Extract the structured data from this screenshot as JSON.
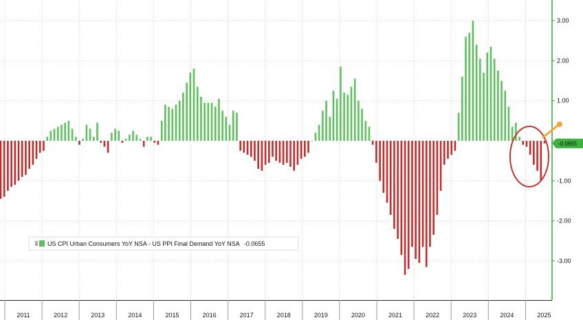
{
  "chart_data": {
    "type": "bar",
    "title": "",
    "xlabel": "",
    "ylabel": "",
    "ylim": [
      -4.0,
      3.3
    ],
    "y_ticks": [
      -3,
      -2,
      -1,
      0,
      1,
      2,
      3
    ],
    "y_tick_labels": [
      "-3.00",
      "-2.00",
      "-1.00",
      "",
      "1.00",
      "2.00",
      "3.00"
    ],
    "x_years": [
      "2011",
      "2012",
      "2013",
      "2014",
      "2015",
      "2016",
      "2017",
      "2018",
      "2019",
      "2020",
      "2021",
      "2022",
      "2023",
      "2024",
      "2025"
    ],
    "series": [
      {
        "name": "US CPI Urban Consumers YoY NSA - US PPI Final Demand YoY NSA",
        "last_value": "-0.0655",
        "last_value_label": "-0.0655",
        "start": "2010-12",
        "values": [
          -1.45,
          -1.4,
          -1.25,
          -1.15,
          -1.1,
          -1.0,
          -0.9,
          -0.85,
          -0.7,
          -0.6,
          -0.45,
          -0.3,
          -0.25,
          0.1,
          0.25,
          0.3,
          0.35,
          0.4,
          0.45,
          0.5,
          0.3,
          0.1,
          -0.1,
          0.05,
          0.4,
          0.3,
          0.1,
          0.45,
          -0.05,
          -0.15,
          -0.3,
          0.2,
          0.3,
          0.25,
          -0.05,
          0.05,
          0.15,
          0.25,
          0.15,
          0.05,
          -0.15,
          0.1,
          0.1,
          -0.05,
          -0.1,
          0.5,
          0.9,
          0.85,
          0.8,
          0.9,
          1.0,
          1.2,
          1.45,
          1.7,
          1.8,
          1.35,
          1.1,
          0.95,
          0.95,
          0.95,
          0.85,
          1.05,
          0.75,
          0.6,
          0.4,
          0.75,
          0.7,
          -0.25,
          -0.3,
          -0.35,
          -0.4,
          -0.5,
          -0.7,
          -0.75,
          -0.6,
          -0.55,
          -0.4,
          -0.5,
          -0.55,
          -0.6,
          -0.55,
          -0.65,
          -0.75,
          -0.6,
          -0.45,
          -0.4,
          -0.3,
          0.0,
          0.2,
          0.4,
          0.75,
          1.0,
          0.6,
          1.25,
          1.05,
          1.85,
          1.2,
          1.15,
          1.35,
          1.55,
          1.0,
          0.8,
          0.5,
          0.35,
          -0.1,
          -0.55,
          -1.0,
          -1.3,
          -1.55,
          -1.85,
          -2.2,
          -2.45,
          -2.85,
          -3.35,
          -3.2,
          -2.65,
          -2.95,
          -3.05,
          -2.65,
          -3.15,
          -2.65,
          -2.35,
          -1.85,
          -1.25,
          -0.6,
          -0.45,
          -0.35,
          -0.25,
          0.7,
          1.6,
          2.6,
          2.7,
          3.0,
          2.4,
          2.05,
          1.7,
          2.2,
          2.35,
          2.05,
          1.75,
          1.5,
          1.25,
          0.85,
          0.35,
          0.45,
          0.1,
          -0.1,
          -0.15,
          -0.35,
          -0.6,
          -0.75,
          -1.0,
          -0.0655
        ]
      }
    ],
    "colors": {
      "positive": "#5cc15c",
      "negative": "#c82a2a",
      "axis": "#33aa33",
      "grid": "#cfcfcf",
      "highlight_circle": "#c8302a",
      "arrow": "#f2a43a",
      "last_value_box": "#3fb13f"
    },
    "grid": true,
    "legend_position": "bottom-left",
    "annotations": [
      {
        "type": "circle",
        "around": "2024-2025 negative bars"
      },
      {
        "type": "arrow",
        "pointing_to": "latest value"
      }
    ]
  }
}
